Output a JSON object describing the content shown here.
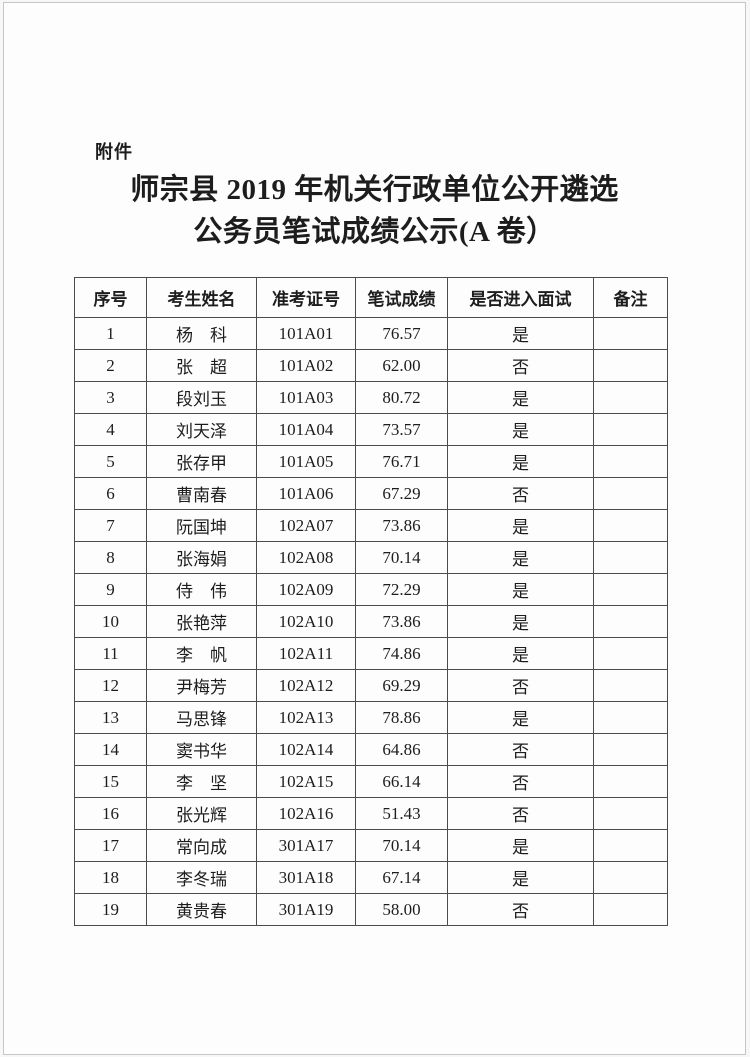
{
  "document": {
    "attachment_label": "附件",
    "title_line1": "师宗县 2019 年机关行政单位公开遴选",
    "title_line2": "公务员笔试成绩公示(A 卷）"
  },
  "table": {
    "columns": [
      "序号",
      "考生姓名",
      "准考证号",
      "笔试成绩",
      "是否进入面试",
      "备注"
    ],
    "rows": [
      [
        "1",
        "杨　科",
        "101A01",
        "76.57",
        "是",
        ""
      ],
      [
        "2",
        "张　超",
        "101A02",
        "62.00",
        "否",
        ""
      ],
      [
        "3",
        "段刘玉",
        "101A03",
        "80.72",
        "是",
        ""
      ],
      [
        "4",
        "刘天泽",
        "101A04",
        "73.57",
        "是",
        ""
      ],
      [
        "5",
        "张存甲",
        "101A05",
        "76.71",
        "是",
        ""
      ],
      [
        "6",
        "曹南春",
        "101A06",
        "67.29",
        "否",
        ""
      ],
      [
        "7",
        "阮国坤",
        "102A07",
        "73.86",
        "是",
        ""
      ],
      [
        "8",
        "张海娟",
        "102A08",
        "70.14",
        "是",
        ""
      ],
      [
        "9",
        "侍　伟",
        "102A09",
        "72.29",
        "是",
        ""
      ],
      [
        "10",
        "张艳萍",
        "102A10",
        "73.86",
        "是",
        ""
      ],
      [
        "11",
        "李　帆",
        "102A11",
        "74.86",
        "是",
        ""
      ],
      [
        "12",
        "尹梅芳",
        "102A12",
        "69.29",
        "否",
        ""
      ],
      [
        "13",
        "马思锋",
        "102A13",
        "78.86",
        "是",
        ""
      ],
      [
        "14",
        "窦书华",
        "102A14",
        "64.86",
        "否",
        ""
      ],
      [
        "15",
        "李　坚",
        "102A15",
        "66.14",
        "否",
        ""
      ],
      [
        "16",
        "张光辉",
        "102A16",
        "51.43",
        "否",
        ""
      ],
      [
        "17",
        "常向成",
        "301A17",
        "70.14",
        "是",
        ""
      ],
      [
        "18",
        "李冬瑞",
        "301A18",
        "67.14",
        "是",
        ""
      ],
      [
        "19",
        "黄贵春",
        "301A19",
        "58.00",
        "否",
        ""
      ]
    ]
  },
  "colors": {
    "page_background": "#fdfdfd",
    "page_border": "#c6c6c6",
    "table_border": "#4c4c4c",
    "text": "#1d1d1d"
  }
}
